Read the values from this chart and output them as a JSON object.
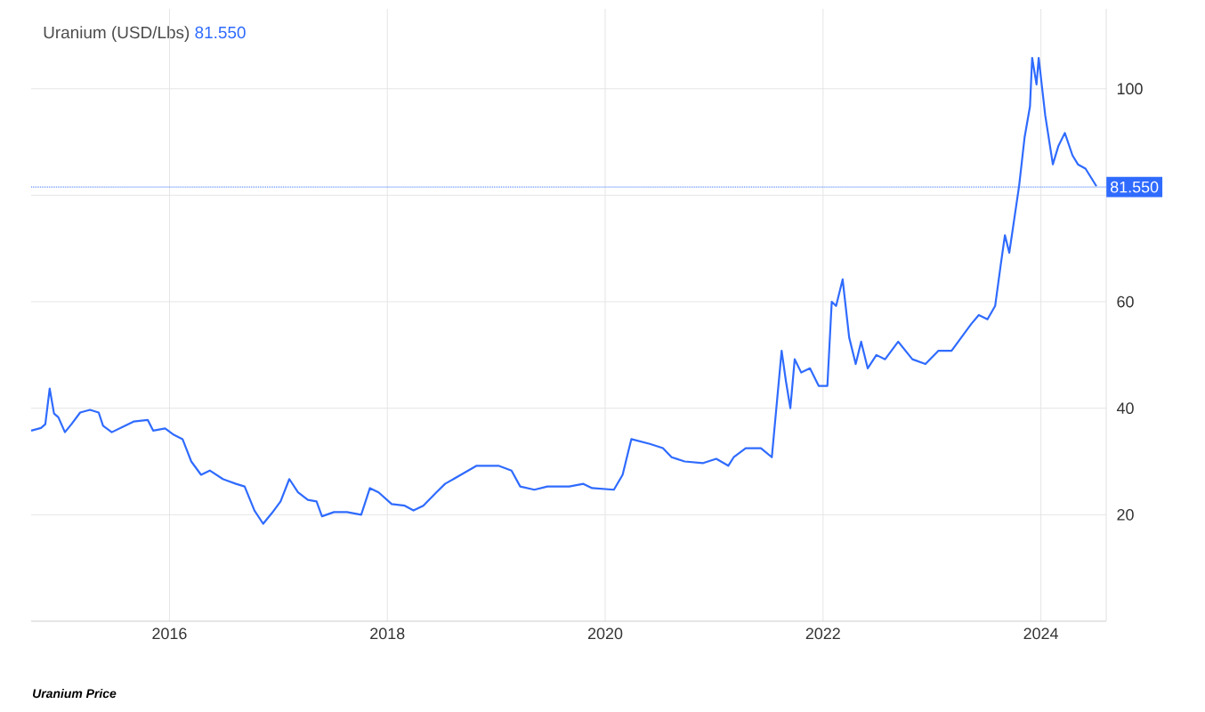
{
  "chart_data": {
    "type": "line",
    "title": "Uranium (USD/Lbs)",
    "subtitle": "81.550",
    "annotations": [
      "Uranium Price"
    ],
    "x": [
      2014.73,
      2014.82,
      2014.86,
      2014.9,
      2014.94,
      2014.98,
      2015.04,
      2015.1,
      2015.18,
      2015.27,
      2015.35,
      2015.39,
      2015.47,
      2015.59,
      2015.67,
      2015.8,
      2015.85,
      2015.96,
      2016.04,
      2016.12,
      2016.2,
      2016.29,
      2016.37,
      2016.49,
      2016.61,
      2016.69,
      2016.78,
      2016.86,
      2016.94,
      2017.02,
      2017.1,
      2017.18,
      2017.27,
      2017.35,
      2017.4,
      2017.51,
      2017.63,
      2017.76,
      2017.84,
      2017.92,
      2018.04,
      2018.16,
      2018.24,
      2018.33,
      2018.45,
      2018.53,
      2018.65,
      2018.82,
      2019.02,
      2019.14,
      2019.22,
      2019.35,
      2019.47,
      2019.67,
      2019.8,
      2019.88,
      2020.08,
      2020.16,
      2020.24,
      2020.41,
      2020.53,
      2020.61,
      2020.73,
      2020.9,
      2021.02,
      2021.13,
      2021.18,
      2021.29,
      2021.43,
      2021.53,
      2021.62,
      2021.66,
      2021.7,
      2021.74,
      2021.8,
      2021.88,
      2021.96,
      2022.04,
      2022.08,
      2022.12,
      2022.18,
      2022.24,
      2022.3,
      2022.35,
      2022.41,
      2022.49,
      2022.57,
      2022.69,
      2022.82,
      2022.94,
      2023.06,
      2023.18,
      2023.27,
      2023.36,
      2023.43,
      2023.51,
      2023.58,
      2023.63,
      2023.67,
      2023.71,
      2023.8,
      2023.85,
      2023.9,
      2023.92,
      2023.96,
      2023.98,
      2024.04,
      2024.11,
      2024.16,
      2024.22,
      2024.29,
      2024.34,
      2024.41,
      2024.51
    ],
    "series": [
      {
        "color": "#2f6bff",
        "values": [
          35.8,
          36.3,
          37,
          43.7,
          39,
          38.3,
          35.5,
          37,
          39.2,
          39.7,
          39.2,
          36.7,
          35.5,
          36.7,
          37.5,
          37.8,
          35.8,
          36.2,
          35,
          34.2,
          30,
          27.5,
          28.3,
          26.7,
          25.8,
          25.3,
          20.8,
          18.3,
          20.3,
          22.5,
          26.7,
          24.2,
          22.8,
          22.5,
          19.7,
          20.5,
          20.5,
          20,
          25,
          24.2,
          22,
          21.7,
          20.8,
          21.7,
          24.2,
          25.8,
          27.2,
          29.2,
          29.2,
          28.3,
          25.3,
          24.7,
          25.3,
          25.3,
          25.8,
          25,
          24.7,
          27.5,
          34.2,
          33.3,
          32.5,
          30.8,
          30,
          29.7,
          30.5,
          29.2,
          30.8,
          32.5,
          32.5,
          30.8,
          50.8,
          45,
          40,
          49.2,
          46.7,
          47.5,
          44.2,
          44.2,
          60,
          59.2,
          64.2,
          53.3,
          48.3,
          52.5,
          47.5,
          50,
          49.2,
          52.5,
          49.2,
          48.3,
          50.8,
          50.8,
          53.3,
          55.8,
          57.5,
          56.7,
          59.2,
          66.7,
          72.5,
          69.2,
          81.7,
          90.8,
          96.7,
          105.8,
          100.8,
          105.8,
          95,
          85.8,
          89.2,
          91.7,
          87.5,
          85.8,
          85,
          81.7
        ]
      }
    ],
    "xlim": [
      2014.73,
      2024.6
    ],
    "ylim": [
      0,
      115
    ],
    "xticks": [
      2016,
      2018,
      2020,
      2022,
      2024
    ],
    "yticks": [
      20,
      40,
      60,
      {
        "value": 80,
        "label": null
      },
      100
    ],
    "grid": true,
    "ref_lines": [
      {
        "axis": "y",
        "value": 81.55,
        "label": "81.550",
        "color": "#2f6bff",
        "line_style": "dotted"
      }
    ]
  }
}
